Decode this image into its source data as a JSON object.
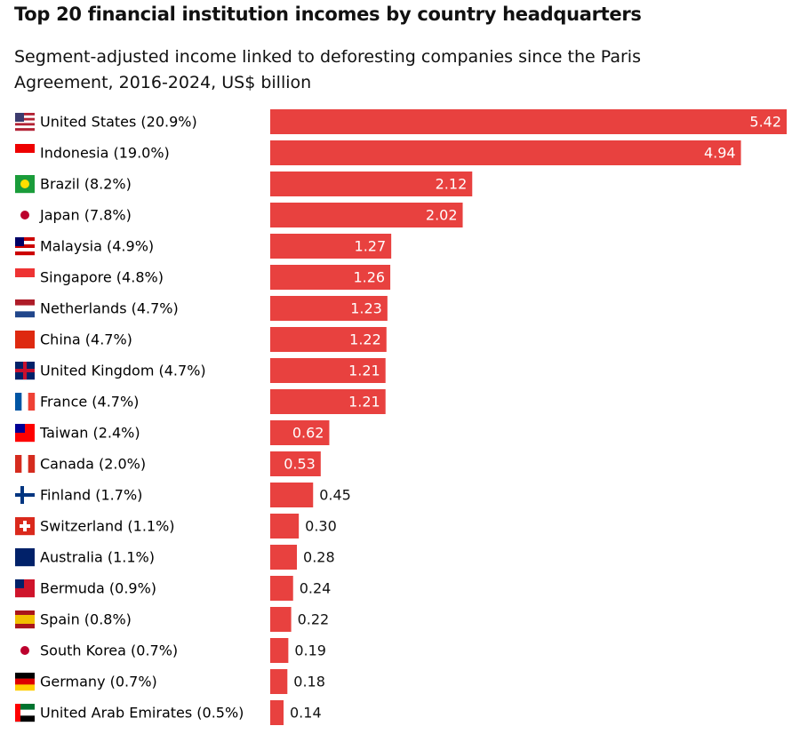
{
  "chart_data": {
    "type": "bar",
    "orientation": "horizontal",
    "title": "Top 20 financial institution incomes by country headquarters",
    "subtitle": "Segment-adjusted income linked to deforesting companies since the Paris Agreement, 2016-2024, US$ billion",
    "categories": [
      "United States (20.9%)",
      "Indonesia (19.0%)",
      "Brazil (8.2%)",
      "Japan (7.8%)",
      "Malaysia (4.9%)",
      "Singapore (4.8%)",
      "Netherlands (4.7%)",
      "China (4.7%)",
      "United Kingdom (4.7%)",
      "France (4.7%)",
      "Taiwan (2.4%)",
      "Canada (2.0%)",
      "Finland (1.7%)",
      "Switzerland (1.1%)",
      "Australia (1.1%)",
      "Bermuda (0.9%)",
      "Spain (0.8%)",
      "South Korea (0.7%)",
      "Germany (0.7%)",
      "United Arab Emirates (0.5%)"
    ],
    "values": [
      5.42,
      4.94,
      2.12,
      2.02,
      1.27,
      1.26,
      1.23,
      1.22,
      1.21,
      1.21,
      0.62,
      0.53,
      0.45,
      0.3,
      0.28,
      0.24,
      0.22,
      0.19,
      0.18,
      0.14
    ],
    "value_labels": [
      "5.42",
      "4.94",
      "2.12",
      "2.02",
      "1.27",
      "1.26",
      "1.23",
      "1.22",
      "1.21",
      "1.21",
      "0.62",
      "0.53",
      "0.45",
      "0.30",
      "0.28",
      "0.24",
      "0.22",
      "0.19",
      "0.18",
      "0.14"
    ],
    "color": "#e8413f"
  }
}
